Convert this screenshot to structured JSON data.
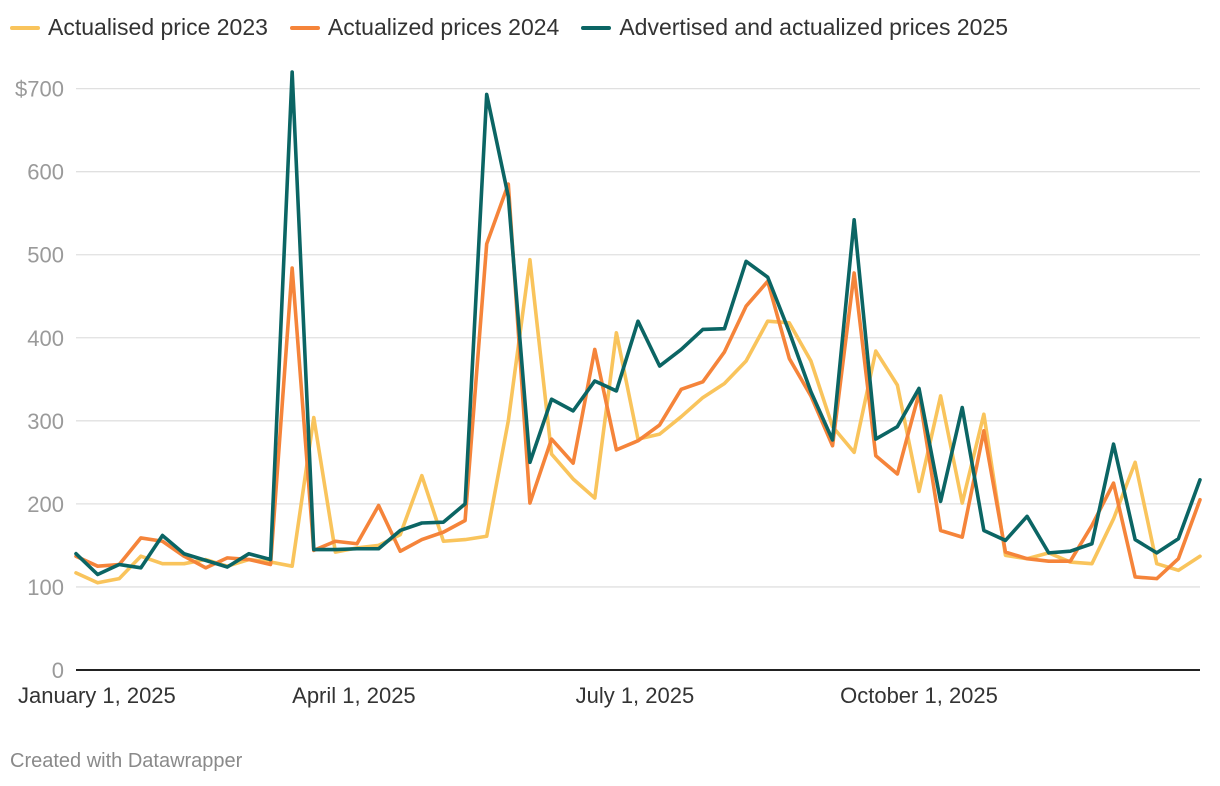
{
  "chart_data": {
    "type": "line",
    "x": [
      "2025-01-01",
      "2025-01-08",
      "2025-01-15",
      "2025-01-22",
      "2025-01-29",
      "2025-02-05",
      "2025-02-12",
      "2025-02-19",
      "2025-02-26",
      "2025-03-05",
      "2025-03-12",
      "2025-03-19",
      "2025-03-26",
      "2025-04-02",
      "2025-04-09",
      "2025-04-16",
      "2025-04-23",
      "2025-04-30",
      "2025-05-07",
      "2025-05-14",
      "2025-05-21",
      "2025-05-28",
      "2025-06-04",
      "2025-06-11",
      "2025-06-18",
      "2025-06-25",
      "2025-07-02",
      "2025-07-09",
      "2025-07-16",
      "2025-07-23",
      "2025-07-30",
      "2025-08-06",
      "2025-08-13",
      "2025-08-20",
      "2025-08-27",
      "2025-09-03",
      "2025-09-10",
      "2025-09-17",
      "2025-09-24",
      "2025-10-01",
      "2025-10-08",
      "2025-10-15",
      "2025-10-22",
      "2025-10-29",
      "2025-11-05",
      "2025-11-12",
      "2025-11-19",
      "2025-11-26",
      "2025-12-03",
      "2025-12-10",
      "2025-12-17",
      "2025-12-24",
      "2025-12-31"
    ],
    "series": [
      {
        "name": "Actualised price 2023",
        "color": "#f9c45c",
        "values": [
          117,
          105,
          110,
          137,
          128,
          128,
          133,
          125,
          133,
          130,
          125,
          304,
          142,
          147,
          150,
          163,
          234,
          155,
          157,
          161,
          300,
          494,
          260,
          230,
          207,
          406,
          278,
          284,
          305,
          328,
          345,
          372,
          420,
          418,
          372,
          293,
          262,
          384,
          343,
          215,
          330,
          201,
          308,
          138,
          134,
          141,
          130,
          128,
          182,
          250,
          128,
          120,
          137
        ]
      },
      {
        "name": "Actualized prices 2024",
        "color": "#f5843a",
        "values": [
          137,
          125,
          127,
          159,
          155,
          137,
          123,
          135,
          133,
          127,
          484,
          144,
          155,
          152,
          198,
          143,
          157,
          166,
          180,
          513,
          585,
          201,
          278,
          249,
          386,
          265,
          276,
          295,
          338,
          347,
          383,
          438,
          468,
          375,
          330,
          270,
          478,
          258,
          236,
          333,
          168,
          160,
          288,
          142,
          134,
          131,
          131,
          174,
          225,
          112,
          110,
          134,
          205
        ]
      },
      {
        "name": "Advertised and actualized prices 2025",
        "color": "#0b6564",
        "values": [
          140,
          115,
          127,
          123,
          162,
          140,
          132,
          124,
          140,
          133,
          720,
          145,
          145,
          146,
          146,
          168,
          177,
          178,
          200,
          693,
          570,
          250,
          326,
          312,
          348,
          336,
          420,
          366,
          386,
          410,
          411,
          492,
          473,
          407,
          335,
          277,
          542,
          278,
          293,
          339,
          203,
          316,
          168,
          156,
          185,
          141,
          143,
          152,
          272,
          157,
          141,
          158,
          229
        ]
      }
    ],
    "x_ticks": [
      "2025-01-01",
      "2025-04-01",
      "2025-07-01",
      "2025-10-01"
    ],
    "x_tick_labels": [
      "January 1, 2025",
      "April 1, 2025",
      "July 1, 2025",
      "October 1, 2025"
    ],
    "y_ticks": [
      0,
      100,
      200,
      300,
      400,
      500,
      600,
      700
    ],
    "y_tick_labels": [
      "0",
      "100",
      "200",
      "300",
      "400",
      "500",
      "600",
      "$700"
    ],
    "ylim": [
      0,
      720
    ],
    "xlim": [
      "2025-01-01",
      "2025-12-31"
    ],
    "grid": true,
    "legend_position": "top-left",
    "title": "",
    "xlabel": "",
    "ylabel": ""
  },
  "credit": "Created with Datawrapper"
}
